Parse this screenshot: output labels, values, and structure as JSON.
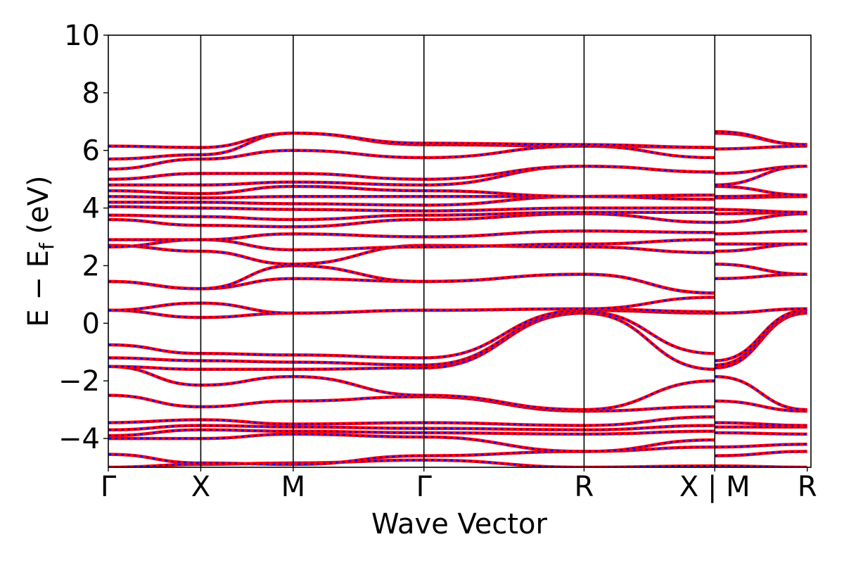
{
  "chart_data": {
    "type": "line",
    "title": "",
    "xlabel": "Wave Vector",
    "ylabel_main": "E − E",
    "ylabel_sub": "f",
    "ylabel_unit": " (eV)",
    "ylim": [
      -5,
      10
    ],
    "yticks": [
      -4,
      -2,
      0,
      2,
      4,
      6,
      8,
      10
    ],
    "ytick_labels": [
      "−4",
      "−2",
      "0",
      "2",
      "4",
      "6",
      "8",
      "10"
    ],
    "xlim": [
      0,
      7.6
    ],
    "k_points": [
      {
        "label": "Γ",
        "x": 0
      },
      {
        "label": "X",
        "x": 1.0
      },
      {
        "label": "M",
        "x": 2.0
      },
      {
        "label": "Γ",
        "x": 3.414
      },
      {
        "label": "R",
        "x": 5.146
      },
      {
        "label": "X | M",
        "x": 6.56
      },
      {
        "label": "R",
        "x": 7.56
      }
    ],
    "grid": false,
    "legend": "none",
    "colors": {
      "band_solid": "#ff0000",
      "band_dashed": "#0000ff",
      "axis": "#000000"
    },
    "series": [
      {
        "x": [
          0,
          1,
          2,
          3.414,
          5.146,
          6.56,
          6.561,
          7.56
        ],
        "y": [
          -5.0,
          -4.9,
          -4.85,
          -4.75,
          -5.0,
          -4.95,
          -4.95,
          -5.0
        ]
      },
      {
        "x": [
          0,
          1,
          2,
          3.414,
          5.146,
          6.56,
          6.561,
          7.56
        ],
        "y": [
          -4.55,
          -4.85,
          -4.9,
          -4.6,
          -4.45,
          -4.3,
          -4.6,
          -4.45
        ]
      },
      {
        "x": [
          0,
          1,
          2,
          3.414,
          5.146,
          6.56,
          6.561,
          7.56
        ],
        "y": [
          -4.0,
          -4.0,
          -3.85,
          -3.95,
          -4.45,
          -4.05,
          -4.3,
          -4.2
        ]
      },
      {
        "x": [
          0,
          1,
          2,
          3.414,
          5.146,
          6.56,
          6.561,
          7.56
        ],
        "y": [
          -3.9,
          -3.7,
          -3.75,
          -3.8,
          -3.85,
          -3.75,
          -3.8,
          -3.85
        ]
      },
      {
        "x": [
          0,
          1,
          2,
          3.414,
          5.146,
          6.56,
          6.561,
          7.56
        ],
        "y": [
          -3.7,
          -3.55,
          -3.6,
          -3.65,
          -3.7,
          -3.55,
          -3.6,
          -3.6
        ]
      },
      {
        "x": [
          0,
          1,
          2,
          3.414,
          5.146,
          6.56,
          6.561,
          7.56
        ],
        "y": [
          -3.45,
          -3.35,
          -3.5,
          -3.45,
          -3.55,
          -3.25,
          -3.45,
          -3.55
        ]
      },
      {
        "x": [
          0,
          1,
          2,
          3.414,
          5.146,
          6.56,
          6.561,
          7.56
        ],
        "y": [
          -2.5,
          -2.9,
          -2.7,
          -2.55,
          -3.05,
          -2.9,
          -2.7,
          -3.05
        ]
      },
      {
        "x": [
          0,
          1,
          2,
          3.414,
          5.146,
          6.56,
          6.561,
          7.56
        ],
        "y": [
          -1.5,
          -2.15,
          -1.85,
          -2.5,
          -3.0,
          -2.0,
          -1.85,
          -3.0
        ]
      },
      {
        "x": [
          0,
          1,
          2,
          3.414,
          5.146,
          6.56,
          6.561,
          7.56
        ],
        "y": [
          -1.5,
          -1.6,
          -1.6,
          -1.55,
          0.35,
          -1.6,
          -1.55,
          0.35
        ]
      },
      {
        "x": [
          0,
          1,
          2,
          3.414,
          5.146,
          6.56,
          6.561,
          7.56
        ],
        "y": [
          -1.2,
          -1.3,
          -1.35,
          -1.45,
          0.4,
          -1.05,
          -1.45,
          0.4
        ]
      },
      {
        "x": [
          0,
          1,
          2,
          3.414,
          5.146,
          6.56,
          6.561,
          7.56
        ],
        "y": [
          -0.75,
          -1.05,
          -1.1,
          -1.2,
          0.45,
          0.35,
          -1.3,
          0.45
        ]
      },
      {
        "x": [
          0,
          1,
          2,
          3.414,
          5.146,
          6.56,
          6.561,
          7.56
        ],
        "y": [
          0.45,
          0.2,
          0.35,
          0.45,
          0.5,
          0.4,
          0.35,
          0.5
        ]
      },
      {
        "x": [
          0,
          1,
          2,
          3.414,
          5.146,
          6.56,
          6.561,
          7.56
        ],
        "y": [
          0.45,
          0.7,
          0.35,
          0.45,
          0.5,
          0.9,
          0.35,
          0.5
        ]
      },
      {
        "x": [
          0,
          1,
          2,
          3.414,
          5.146,
          6.56,
          6.561,
          7.56
        ],
        "y": [
          1.45,
          1.2,
          1.55,
          1.45,
          1.7,
          1.05,
          1.55,
          1.7
        ]
      },
      {
        "x": [
          0,
          1,
          2,
          3.414,
          5.146,
          6.56,
          6.561,
          7.56
        ],
        "y": [
          1.45,
          1.2,
          2.0,
          1.45,
          1.7,
          1.05,
          2.05,
          1.7
        ]
      },
      {
        "x": [
          0,
          1,
          2,
          3.414,
          5.146,
          6.56,
          6.561,
          7.56
        ],
        "y": [
          2.7,
          2.5,
          2.05,
          2.7,
          2.65,
          2.45,
          2.5,
          2.75
        ]
      },
      {
        "x": [
          0,
          1,
          2,
          3.414,
          5.146,
          6.56,
          6.561,
          7.56
        ],
        "y": [
          2.65,
          2.9,
          2.55,
          2.65,
          2.75,
          2.9,
          2.75,
          2.75
        ]
      },
      {
        "x": [
          0,
          1,
          2,
          3.414,
          5.146,
          6.56,
          6.561,
          7.56
        ],
        "y": [
          2.9,
          2.9,
          3.1,
          3.0,
          3.2,
          3.15,
          3.1,
          3.2
        ]
      },
      {
        "x": [
          0,
          1,
          2,
          3.414,
          5.146,
          6.56,
          6.561,
          7.56
        ],
        "y": [
          3.6,
          3.4,
          3.35,
          3.6,
          3.8,
          3.5,
          3.5,
          3.8
        ]
      },
      {
        "x": [
          0,
          1,
          2,
          3.414,
          5.146,
          6.56,
          6.561,
          7.56
        ],
        "y": [
          3.75,
          3.7,
          3.6,
          3.75,
          3.85,
          3.85,
          3.8,
          3.85
        ]
      },
      {
        "x": [
          0,
          1,
          2,
          3.414,
          5.146,
          6.56,
          6.561,
          7.56
        ],
        "y": [
          4.05,
          4.0,
          3.95,
          3.9,
          4.0,
          4.0,
          3.95,
          3.85
        ]
      },
      {
        "x": [
          0,
          1,
          2,
          3.414,
          5.146,
          6.56,
          6.561,
          7.56
        ],
        "y": [
          4.2,
          4.2,
          4.15,
          4.1,
          4.4,
          4.3,
          4.35,
          4.4
        ]
      },
      {
        "x": [
          0,
          1,
          2,
          3.414,
          5.146,
          6.56,
          6.561,
          7.56
        ],
        "y": [
          4.4,
          4.35,
          4.4,
          4.4,
          4.4,
          4.45,
          4.4,
          4.45
        ]
      },
      {
        "x": [
          0,
          1,
          2,
          3.414,
          5.146,
          6.56,
          6.561,
          7.56
        ],
        "y": [
          4.6,
          4.5,
          4.75,
          4.6,
          4.4,
          4.45,
          4.75,
          4.45
        ]
      },
      {
        "x": [
          0,
          1,
          2,
          3.414,
          5.146,
          6.56,
          6.561,
          7.56
        ],
        "y": [
          4.8,
          4.8,
          4.9,
          4.8,
          5.45,
          5.25,
          4.8,
          5.45
        ]
      },
      {
        "x": [
          0,
          1,
          2,
          3.414,
          5.146,
          6.56,
          6.561,
          7.56
        ],
        "y": [
          5.0,
          5.2,
          5.2,
          5.0,
          5.45,
          5.25,
          5.2,
          5.45
        ]
      },
      {
        "x": [
          0,
          1,
          2,
          3.414,
          5.146,
          6.56,
          6.561,
          7.56
        ],
        "y": [
          5.35,
          5.7,
          6.0,
          5.75,
          6.15,
          5.75,
          6.05,
          6.15
        ]
      },
      {
        "x": [
          0,
          1,
          2,
          3.414,
          5.146,
          6.56,
          6.561,
          7.56
        ],
        "y": [
          5.7,
          5.85,
          6.6,
          6.2,
          6.15,
          6.1,
          6.6,
          6.2
        ]
      },
      {
        "x": [
          0,
          1,
          2,
          3.414,
          5.146,
          6.56,
          6.561,
          7.56
        ],
        "y": [
          6.15,
          6.1,
          6.6,
          6.25,
          6.2,
          6.1,
          6.65,
          6.2
        ]
      }
    ]
  }
}
